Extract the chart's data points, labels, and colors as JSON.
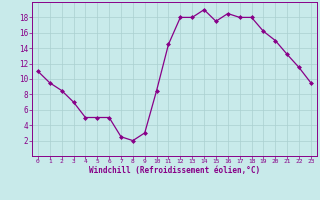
{
  "x": [
    0,
    1,
    2,
    3,
    4,
    5,
    6,
    7,
    8,
    9,
    10,
    11,
    12,
    13,
    14,
    15,
    16,
    17,
    18,
    19,
    20,
    21,
    22,
    23
  ],
  "y": [
    11,
    9.5,
    8.5,
    7,
    5,
    5,
    5,
    2.5,
    2,
    3,
    8.5,
    14.5,
    18,
    18,
    19,
    17.5,
    18.5,
    18,
    18,
    16.2,
    15,
    13.2,
    11.5,
    9.5
  ],
  "line_color": "#880088",
  "marker_color": "#880088",
  "bg_color": "#c8eaea",
  "grid_color": "#aad0d0",
  "xlabel": "Windchill (Refroidissement éolien,°C)",
  "xlabel_color": "#880088",
  "tick_color": "#880088",
  "ylim": [
    0,
    20
  ],
  "xlim": [
    -0.5,
    23.5
  ],
  "yticks": [
    2,
    4,
    6,
    8,
    10,
    12,
    14,
    16,
    18
  ],
  "xticks": [
    0,
    1,
    2,
    3,
    4,
    5,
    6,
    7,
    8,
    9,
    10,
    11,
    12,
    13,
    14,
    15,
    16,
    17,
    18,
    19,
    20,
    21,
    22,
    23
  ]
}
